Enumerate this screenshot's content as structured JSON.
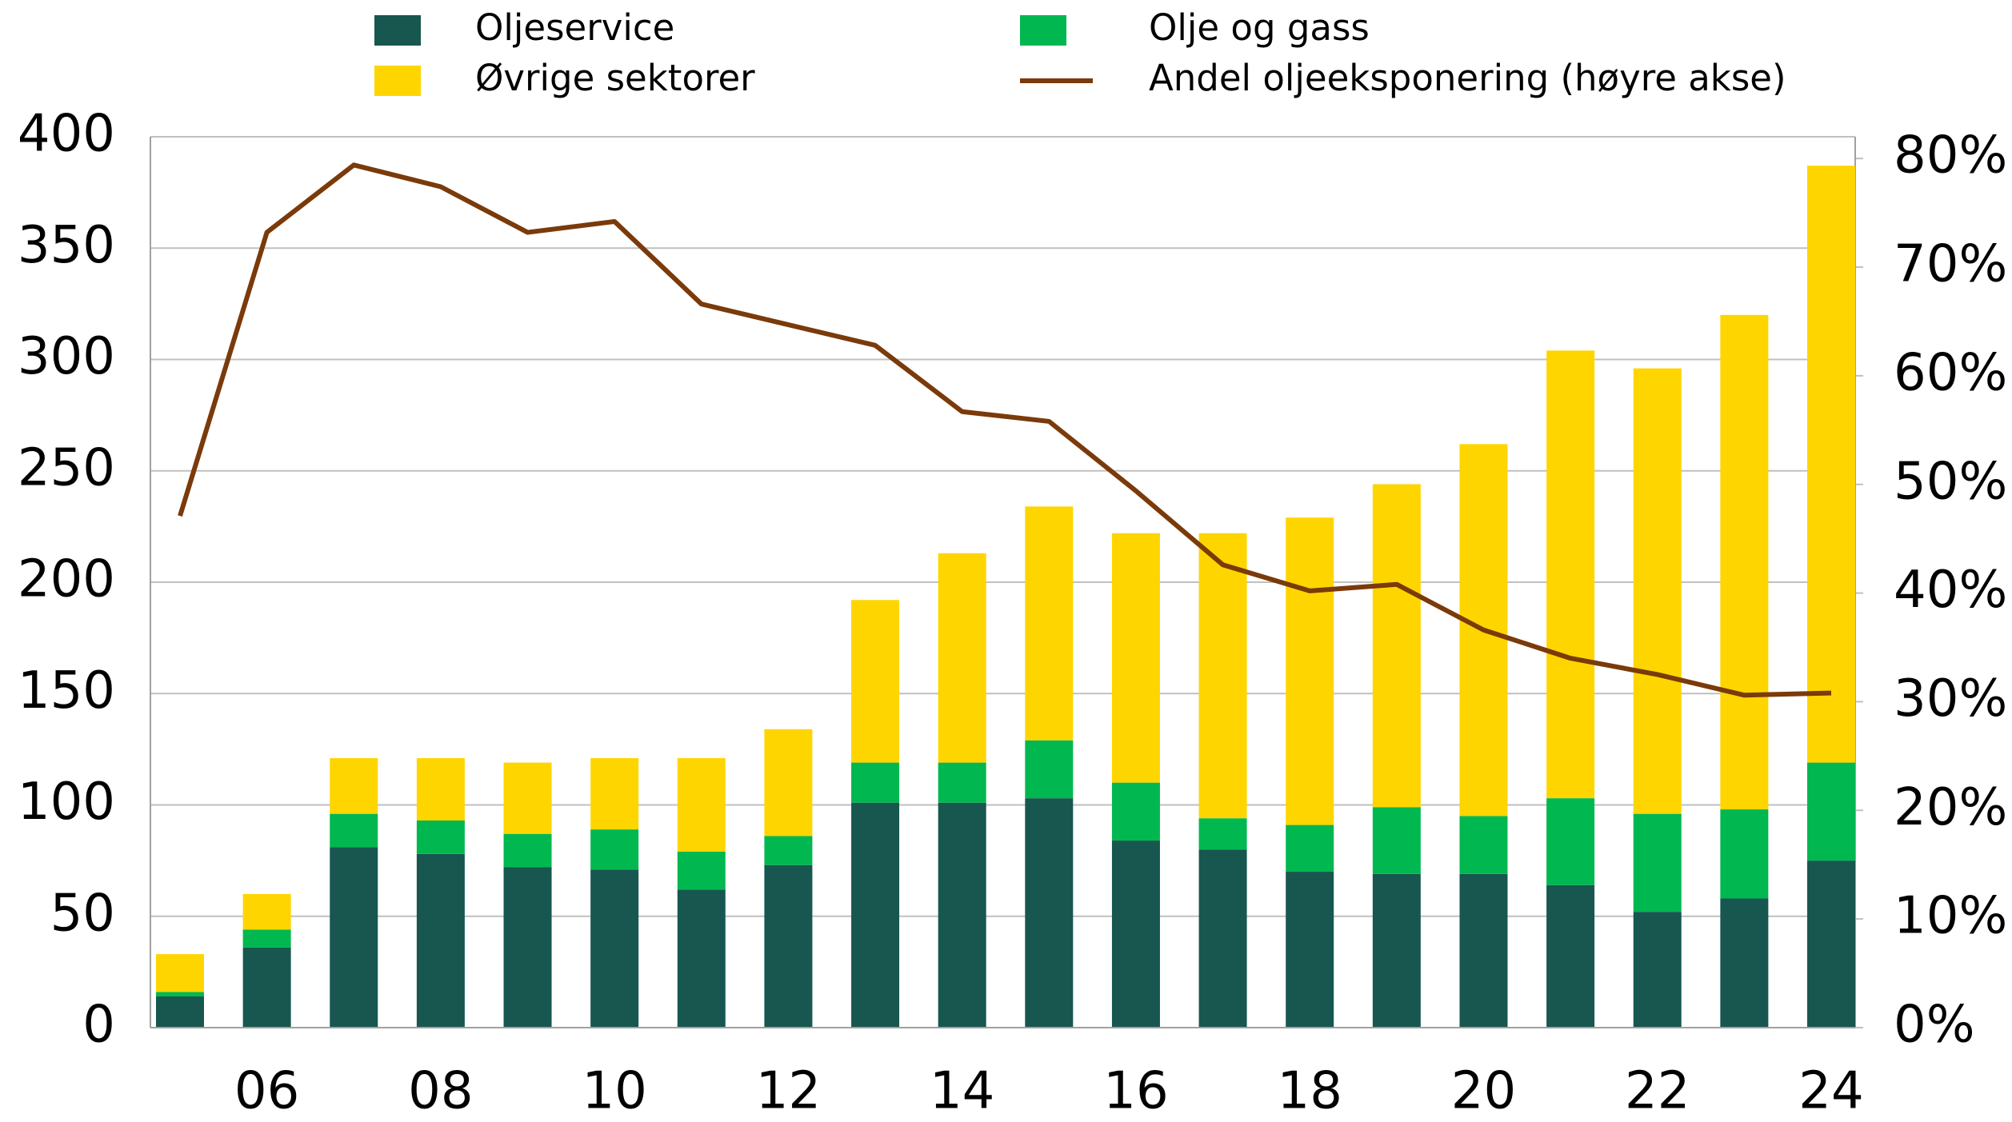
{
  "chart_data": {
    "type": "bar",
    "categories": [
      null,
      "06",
      null,
      "08",
      null,
      "10",
      null,
      "12",
      null,
      "14",
      null,
      "16",
      null,
      "18",
      null,
      "20",
      null,
      "22",
      null,
      "24"
    ],
    "series": [
      {
        "name": "Oljeservice",
        "color": "#17574f",
        "values": [
          14,
          36,
          81,
          78,
          72,
          71,
          62,
          73,
          101,
          101,
          103,
          84,
          80,
          70,
          69,
          69,
          64,
          52,
          58,
          75
        ]
      },
      {
        "name": "Olje og gass",
        "color": "#00b84f",
        "values": [
          2,
          8,
          15,
          15,
          15,
          18,
          17,
          13,
          18,
          18,
          26,
          26,
          14,
          21,
          30,
          26,
          39,
          44,
          40,
          44
        ]
      },
      {
        "name": "Øvrige sektorer",
        "color": "#ffd500",
        "values": [
          17,
          16,
          25,
          28,
          32,
          32,
          42,
          48,
          73,
          94,
          105,
          112,
          128,
          138,
          145,
          167,
          201,
          200,
          222,
          268
        ]
      },
      {
        "name": "Andel oljeeksponering (høyre akse)",
        "color": "#7a3a0a",
        "type": "line",
        "axis": "y2",
        "values": [
          47.1,
          73.2,
          79.4,
          77.4,
          73.2,
          74.2,
          66.6,
          64.7,
          62.8,
          56.7,
          55.8,
          49.4,
          42.6,
          40.2,
          40.8,
          36.6,
          34.0,
          32.5,
          30.6,
          30.8
        ]
      }
    ],
    "ylim": [
      0,
      400
    ],
    "yticks": [
      0,
      50,
      100,
      150,
      200,
      250,
      300,
      350,
      400
    ],
    "y2lim": [
      0,
      82
    ],
    "y2ticks": [
      {
        "value": 0,
        "label": "0%"
      },
      {
        "value": 10,
        "label": "10%"
      },
      {
        "value": 20,
        "label": "20%"
      },
      {
        "value": 30,
        "label": "30%"
      },
      {
        "value": 40,
        "label": "40%"
      },
      {
        "value": 50,
        "label": "50%"
      },
      {
        "value": 60,
        "label": "60%"
      },
      {
        "value": 70,
        "label": "70%"
      },
      {
        "value": 80,
        "label": "80%"
      }
    ],
    "grid": true
  }
}
